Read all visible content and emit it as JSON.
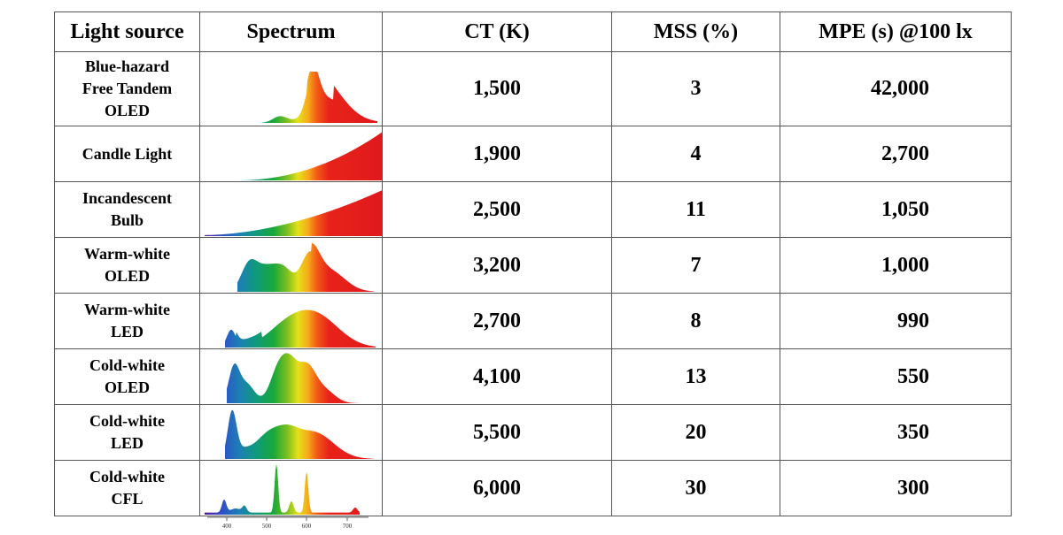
{
  "header": {
    "light_source": "Light source",
    "spectrum": "Spectrum",
    "ct": "CT (K)",
    "mss": "MSS (%)",
    "mpe": "MPE (s) @100 lx"
  },
  "rows": [
    {
      "source_lines": [
        "Blue-hazard",
        "Free Tandem",
        "OLED"
      ],
      "ct": "1,500",
      "mss": "3",
      "mpe": "42,000",
      "spectrum": "tandem-oled"
    },
    {
      "source_lines": [
        "Candle Light"
      ],
      "ct": "1,900",
      "mss": "4",
      "mpe": "2,700",
      "spectrum": "candle"
    },
    {
      "source_lines": [
        "Incandescent",
        "Bulb"
      ],
      "ct": "2,500",
      "mss": "11",
      "mpe": "1,050",
      "spectrum": "incandescent"
    },
    {
      "source_lines": [
        "Warm-white",
        "OLED"
      ],
      "ct": "3,200",
      "mss": "7",
      "mpe": "1,000",
      "spectrum": "warm-oled"
    },
    {
      "source_lines": [
        "Warm-white",
        "LED"
      ],
      "ct": "2,700",
      "mss": "8",
      "mpe": "990",
      "spectrum": "warm-led"
    },
    {
      "source_lines": [
        "Cold-white",
        "OLED"
      ],
      "ct": "4,100",
      "mss": "13",
      "mpe": "550",
      "spectrum": "cold-oled"
    },
    {
      "source_lines": [
        "Cold-white",
        "LED"
      ],
      "ct": "5,500",
      "mss": "20",
      "mpe": "350",
      "spectrum": "cold-led"
    },
    {
      "source_lines": [
        "Cold-white",
        "CFL"
      ],
      "ct": "6,000",
      "mss": "30",
      "mpe": "300",
      "spectrum": "cfl"
    }
  ],
  "wavelength_ticks": [
    "400",
    "500",
    "600",
    "700"
  ]
}
